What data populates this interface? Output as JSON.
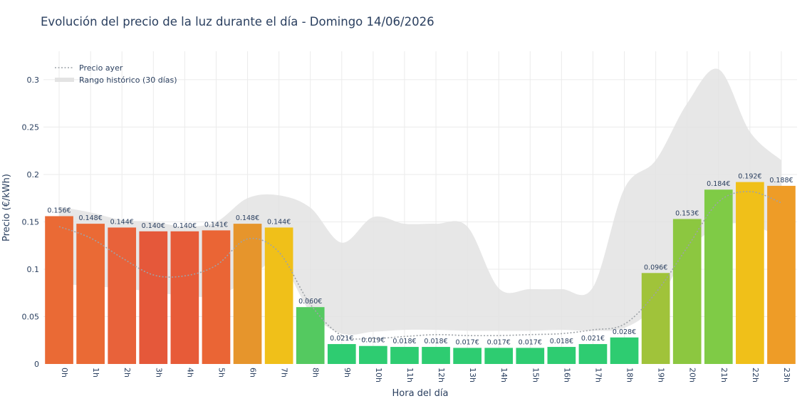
{
  "chart_data": {
    "type": "bar",
    "title": "Evolución del precio de la luz durante el día - Domingo 14/06/2026",
    "xlabel": "Hora del día",
    "ylabel": "Precio (€/kWh)",
    "ylim": [
      0,
      0.33
    ],
    "yticks": [
      0,
      0.05,
      0.1,
      0.15,
      0.2,
      0.25,
      0.3
    ],
    "ytick_labels": [
      "0",
      "0.05",
      "0.1",
      "0.15",
      "0.2",
      "0.25",
      "0.3"
    ],
    "grid": true,
    "legend_position": "top-left",
    "categories": [
      "0h",
      "1h",
      "2h",
      "3h",
      "4h",
      "5h",
      "6h",
      "7h",
      "8h",
      "9h",
      "10h",
      "11h",
      "12h",
      "13h",
      "14h",
      "15h",
      "16h",
      "17h",
      "18h",
      "19h",
      "20h",
      "21h",
      "22h",
      "23h"
    ],
    "series": [
      {
        "type": "bar",
        "values": [
          0.156,
          0.148,
          0.144,
          0.14,
          0.14,
          0.141,
          0.148,
          0.144,
          0.06,
          0.021,
          0.019,
          0.018,
          0.018,
          0.017,
          0.017,
          0.017,
          0.018,
          0.021,
          0.028,
          0.096,
          0.153,
          0.184,
          0.192,
          0.188
        ],
        "labels": [
          "0.156€",
          "0.148€",
          "0.144€",
          "0.140€",
          "0.140€",
          "0.141€",
          "0.148€",
          "0.144€",
          "0.060€",
          "0.021€",
          "0.019€",
          "0.018€",
          "0.018€",
          "0.017€",
          "0.017€",
          "0.017€",
          "0.018€",
          "0.021€",
          "0.028€",
          "0.096€",
          "0.153€",
          "0.184€",
          "0.192€",
          "0.188€"
        ],
        "colors": [
          "#ea6a35",
          "#ea6a35",
          "#e8623a",
          "#e5583a",
          "#e75b38",
          "#ea6535",
          "#e6952c",
          "#f0c019",
          "#54c960",
          "#2ecc71",
          "#2ecc71",
          "#2ecc71",
          "#2ecc71",
          "#2ecc71",
          "#2ecc71",
          "#2ecc71",
          "#2ecc71",
          "#2ecc71",
          "#2ecc71",
          "#a0c33a",
          "#8cc740",
          "#7fcb46",
          "#f0c019",
          "#ee9c27"
        ]
      },
      {
        "name": "Precio ayer",
        "type": "line",
        "values": [
          0.145,
          0.133,
          0.112,
          0.094,
          0.093,
          0.104,
          0.132,
          0.118,
          0.063,
          0.03,
          0.027,
          0.029,
          0.031,
          0.03,
          0.03,
          0.031,
          0.032,
          0.036,
          0.042,
          0.075,
          0.123,
          0.171,
          0.182,
          0.17
        ],
        "color": "#9ea3a8"
      },
      {
        "name": "Rango histórico (30 días)",
        "type": "area",
        "upper": [
          0.166,
          0.16,
          0.152,
          0.15,
          0.145,
          0.15,
          0.175,
          0.178,
          0.165,
          0.128,
          0.155,
          0.148,
          0.148,
          0.145,
          0.08,
          0.079,
          0.079,
          0.081,
          0.185,
          0.215,
          0.275,
          0.311,
          0.245,
          0.215
        ],
        "lower": [
          0.085,
          0.082,
          0.08,
          0.076,
          0.072,
          0.072,
          0.088,
          0.108,
          0.055,
          0.032,
          0.034,
          0.036,
          0.036,
          0.035,
          0.035,
          0.035,
          0.036,
          0.035,
          0.038,
          0.062,
          0.118,
          0.145,
          0.147,
          0.133
        ],
        "color": "#e3e3e3"
      }
    ]
  }
}
